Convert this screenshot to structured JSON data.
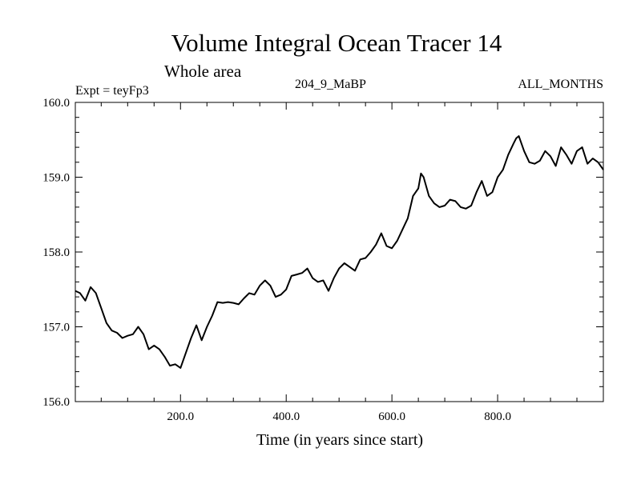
{
  "chart_data": {
    "type": "line",
    "title": "Volume Integral Ocean Tracer 14",
    "subtitle": "Whole area",
    "experiment": "Expt = teyFp3",
    "run_label": "204_9_MaBP",
    "period_label": "ALL_MONTHS",
    "xlabel": "Time (in years since start)",
    "ylabel": "",
    "xlim": [
      1,
      1000
    ],
    "ylim": [
      156.0,
      160.0
    ],
    "x_ticks": [
      200.0,
      400.0,
      600.0,
      800.0
    ],
    "x_tick_labels": [
      "200.0",
      "400.0",
      "600.0",
      "800.0"
    ],
    "y_ticks": [
      156.0,
      157.0,
      158.0,
      159.0,
      160.0
    ],
    "y_tick_labels": [
      "156.0",
      "157.0",
      "158.0",
      "159.0",
      "160.0"
    ],
    "grid": false,
    "series": [
      {
        "name": "Tracer 14",
        "color": "#000000",
        "x": [
          1,
          10,
          20,
          30,
          40,
          50,
          60,
          70,
          80,
          90,
          100,
          110,
          120,
          130,
          140,
          150,
          160,
          170,
          180,
          190,
          200,
          210,
          220,
          230,
          240,
          250,
          260,
          270,
          280,
          290,
          300,
          310,
          320,
          330,
          340,
          350,
          360,
          370,
          380,
          390,
          400,
          410,
          420,
          430,
          440,
          450,
          460,
          470,
          480,
          490,
          500,
          510,
          520,
          530,
          540,
          550,
          560,
          570,
          580,
          590,
          600,
          610,
          620,
          630,
          640,
          650,
          655,
          660,
          670,
          680,
          690,
          700,
          710,
          720,
          730,
          740,
          750,
          760,
          770,
          780,
          790,
          800,
          810,
          820,
          830,
          835,
          840,
          850,
          860,
          870,
          880,
          890,
          900,
          910,
          920,
          930,
          940,
          950,
          960,
          970,
          980,
          990,
          1000
        ],
        "y": [
          157.48,
          157.45,
          157.35,
          157.53,
          157.45,
          157.25,
          157.05,
          156.95,
          156.92,
          156.85,
          156.88,
          156.9,
          157.0,
          156.9,
          156.7,
          156.75,
          156.7,
          156.6,
          156.48,
          156.5,
          156.45,
          156.65,
          156.85,
          157.02,
          156.82,
          157.0,
          157.15,
          157.33,
          157.32,
          157.33,
          157.32,
          157.3,
          157.38,
          157.45,
          157.43,
          157.55,
          157.62,
          157.55,
          157.4,
          157.43,
          157.5,
          157.68,
          157.7,
          157.72,
          157.78,
          157.65,
          157.6,
          157.62,
          157.48,
          157.65,
          157.78,
          157.85,
          157.8,
          157.75,
          157.9,
          157.92,
          158.0,
          158.1,
          158.25,
          158.08,
          158.05,
          158.15,
          158.3,
          158.45,
          158.75,
          158.85,
          159.05,
          159.0,
          158.75,
          158.65,
          158.6,
          158.62,
          158.7,
          158.68,
          158.6,
          158.58,
          158.62,
          158.8,
          158.95,
          158.75,
          158.8,
          159.0,
          159.1,
          159.3,
          159.45,
          159.52,
          159.55,
          159.35,
          159.2,
          159.18,
          159.22,
          159.35,
          159.28,
          159.15,
          159.4,
          159.3,
          159.18,
          159.35,
          159.4,
          159.18,
          159.25,
          159.2,
          159.1
        ]
      }
    ]
  }
}
